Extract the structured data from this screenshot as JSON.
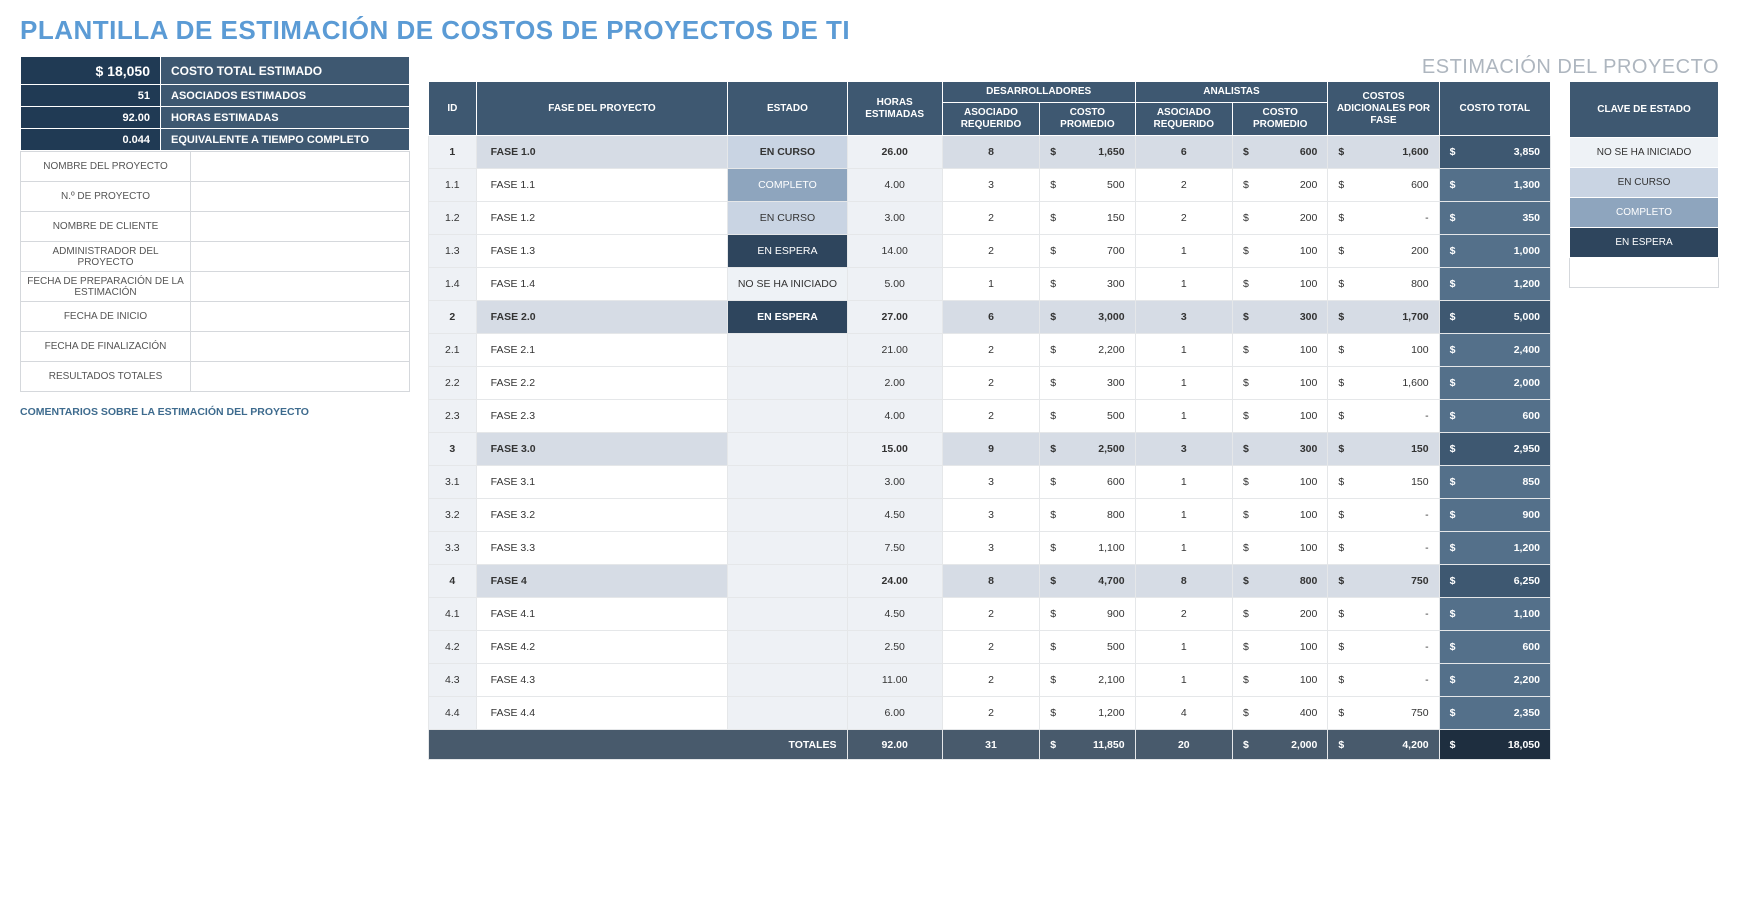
{
  "title": "PLANTILLA DE ESTIMACIÓN DE COSTOS DE PROYECTOS DE TI",
  "subtitle": "ESTIMACIÓN DEL PROYECTO",
  "summary": [
    {
      "value": "$            18,050",
      "label": "COSTO TOTAL ESTIMADO",
      "big": true
    },
    {
      "value": "51",
      "label": "ASOCIADOS ESTIMADOS"
    },
    {
      "value": "92.00",
      "label": "HORAS ESTIMADAS"
    },
    {
      "value": "0.044",
      "label": "EQUIVALENTE A TIEMPO COMPLETO"
    }
  ],
  "meta": [
    {
      "label": "NOMBRE DEL PROYECTO"
    },
    {
      "label": "N.º DE PROYECTO"
    },
    {
      "label": "NOMBRE DE CLIENTE"
    },
    {
      "label": "ADMINISTRADOR DEL PROYECTO"
    },
    {
      "label": "FECHA DE PREPARACIÓN DE LA ESTIMACIÓN"
    },
    {
      "label": "FECHA DE INICIO"
    },
    {
      "label": "FECHA DE FINALIZACIÓN"
    },
    {
      "label": "RESULTADOS TOTALES"
    }
  ],
  "comments_label": "COMENTARIOS SOBRE LA ESTIMACIÓN DEL PROYECTO",
  "columns": {
    "id": "ID",
    "phase": "FASE DEL PROYECTO",
    "state": "ESTADO",
    "hours": "HORAS ESTIMADAS",
    "dev_group": "DESARROLLADORES",
    "dev_req": "ASOCIADO REQUERIDO",
    "dev_cost": "COSTO PROMEDIO",
    "an_group": "ANALISTAS",
    "an_req": "ASOCIADO REQUERIDO",
    "an_cost": "COSTO PROMEDIO",
    "extra": "COSTOS ADICIONALES POR FASE",
    "total": "COSTO TOTAL"
  },
  "rows": [
    {
      "parent": true,
      "id": "1",
      "phase": "FASE 1.0",
      "state": "EN CURSO",
      "state_cls": "st-encurso",
      "hours": "26.00",
      "dev_req": "8",
      "dev_cost": "1,650",
      "an_req": "6",
      "an_cost": "600",
      "extra": "1,600",
      "total": "3,850"
    },
    {
      "parent": false,
      "id": "1.1",
      "phase": "FASE 1.1",
      "state": "COMPLETO",
      "state_cls": "st-completo",
      "hours": "4.00",
      "dev_req": "3",
      "dev_cost": "500",
      "an_req": "2",
      "an_cost": "200",
      "extra": "600",
      "total": "1,300"
    },
    {
      "parent": false,
      "id": "1.2",
      "phase": "FASE 1.2",
      "state": "EN CURSO",
      "state_cls": "st-encurso",
      "hours": "3.00",
      "dev_req": "2",
      "dev_cost": "150",
      "an_req": "2",
      "an_cost": "200",
      "extra": "-",
      "total": "350"
    },
    {
      "parent": false,
      "id": "1.3",
      "phase": "FASE 1.3",
      "state": "EN ESPERA",
      "state_cls": "st-espera",
      "hours": "14.00",
      "dev_req": "2",
      "dev_cost": "700",
      "an_req": "1",
      "an_cost": "100",
      "extra": "200",
      "total": "1,000"
    },
    {
      "parent": false,
      "id": "1.4",
      "phase": "FASE 1.4",
      "state": "NO SE HA INICIADO",
      "state_cls": "st-noiniciado",
      "hours": "5.00",
      "dev_req": "1",
      "dev_cost": "300",
      "an_req": "1",
      "an_cost": "100",
      "extra": "800",
      "total": "1,200"
    },
    {
      "parent": true,
      "id": "2",
      "phase": "FASE 2.0",
      "state": "EN ESPERA",
      "state_cls": "st-espera",
      "hours": "27.00",
      "dev_req": "6",
      "dev_cost": "3,000",
      "an_req": "3",
      "an_cost": "300",
      "extra": "1,700",
      "total": "5,000"
    },
    {
      "parent": false,
      "id": "2.1",
      "phase": "FASE 2.1",
      "state": "",
      "state_cls": "",
      "hours": "21.00",
      "dev_req": "2",
      "dev_cost": "2,200",
      "an_req": "1",
      "an_cost": "100",
      "extra": "100",
      "total": "2,400"
    },
    {
      "parent": false,
      "id": "2.2",
      "phase": "FASE 2.2",
      "state": "",
      "state_cls": "",
      "hours": "2.00",
      "dev_req": "2",
      "dev_cost": "300",
      "an_req": "1",
      "an_cost": "100",
      "extra": "1,600",
      "total": "2,000"
    },
    {
      "parent": false,
      "id": "2.3",
      "phase": "FASE 2.3",
      "state": "",
      "state_cls": "",
      "hours": "4.00",
      "dev_req": "2",
      "dev_cost": "500",
      "an_req": "1",
      "an_cost": "100",
      "extra": "-",
      "total": "600"
    },
    {
      "parent": true,
      "id": "3",
      "phase": "FASE 3.0",
      "state": "",
      "state_cls": "",
      "hours": "15.00",
      "dev_req": "9",
      "dev_cost": "2,500",
      "an_req": "3",
      "an_cost": "300",
      "extra": "150",
      "total": "2,950"
    },
    {
      "parent": false,
      "id": "3.1",
      "phase": "FASE 3.1",
      "state": "",
      "state_cls": "",
      "hours": "3.00",
      "dev_req": "3",
      "dev_cost": "600",
      "an_req": "1",
      "an_cost": "100",
      "extra": "150",
      "total": "850"
    },
    {
      "parent": false,
      "id": "3.2",
      "phase": "FASE 3.2",
      "state": "",
      "state_cls": "",
      "hours": "4.50",
      "dev_req": "3",
      "dev_cost": "800",
      "an_req": "1",
      "an_cost": "100",
      "extra": "-",
      "total": "900"
    },
    {
      "parent": false,
      "id": "3.3",
      "phase": "FASE 3.3",
      "state": "",
      "state_cls": "",
      "hours": "7.50",
      "dev_req": "3",
      "dev_cost": "1,100",
      "an_req": "1",
      "an_cost": "100",
      "extra": "-",
      "total": "1,200"
    },
    {
      "parent": true,
      "id": "4",
      "phase": "FASE 4",
      "state": "",
      "state_cls": "",
      "hours": "24.00",
      "dev_req": "8",
      "dev_cost": "4,700",
      "an_req": "8",
      "an_cost": "800",
      "extra": "750",
      "total": "6,250"
    },
    {
      "parent": false,
      "id": "4.1",
      "phase": "FASE 4.1",
      "state": "",
      "state_cls": "",
      "hours": "4.50",
      "dev_req": "2",
      "dev_cost": "900",
      "an_req": "2",
      "an_cost": "200",
      "extra": "-",
      "total": "1,100"
    },
    {
      "parent": false,
      "id": "4.2",
      "phase": "FASE 4.2",
      "state": "",
      "state_cls": "",
      "hours": "2.50",
      "dev_req": "2",
      "dev_cost": "500",
      "an_req": "1",
      "an_cost": "100",
      "extra": "-",
      "total": "600"
    },
    {
      "parent": false,
      "id": "4.3",
      "phase": "FASE 4.3",
      "state": "",
      "state_cls": "",
      "hours": "11.00",
      "dev_req": "2",
      "dev_cost": "2,100",
      "an_req": "1",
      "an_cost": "100",
      "extra": "-",
      "total": "2,200"
    },
    {
      "parent": false,
      "id": "4.4",
      "phase": "FASE 4.4",
      "state": "",
      "state_cls": "",
      "hours": "6.00",
      "dev_req": "2",
      "dev_cost": "1,200",
      "an_req": "4",
      "an_cost": "400",
      "extra": "750",
      "total": "2,350"
    }
  ],
  "totals": {
    "label": "TOTALES",
    "hours": "92.00",
    "dev_req": "31",
    "dev_cost": "11,850",
    "an_req": "20",
    "an_cost": "2,000",
    "extra": "4,200",
    "total": "18,050"
  },
  "legend": {
    "header": "CLAVE DE ESTADO",
    "items": [
      {
        "label": "NO SE HA INICIADO",
        "cls": "st-noiniciado"
      },
      {
        "label": "EN CURSO",
        "cls": "st-encurso"
      },
      {
        "label": "COMPLETO",
        "cls": "st-completo"
      },
      {
        "label": "EN ESPERA",
        "cls": "st-espera"
      }
    ]
  },
  "colors": {
    "title": "#5b9bd5",
    "header_dark": "#3e5871",
    "header_darker": "#203a54",
    "row_parent": "#d6dce5",
    "total_col": "#54708a"
  }
}
